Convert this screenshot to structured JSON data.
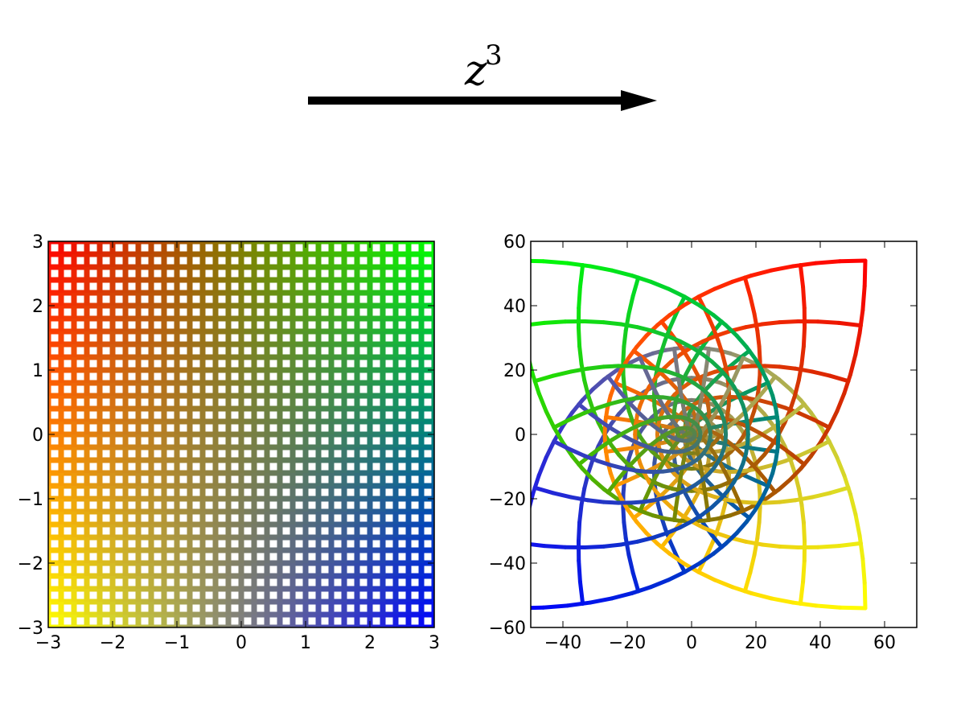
{
  "annotation": {
    "text": "z",
    "superscript": "3"
  },
  "chart_data": [
    {
      "type": "grid",
      "xlim": [
        -3,
        3
      ],
      "ylim": [
        -3,
        3
      ],
      "xticks": [
        {
          "value": -3,
          "label": "−3"
        },
        {
          "value": -2,
          "label": "−2"
        },
        {
          "value": -1,
          "label": "−1"
        },
        0,
        1,
        2,
        3
      ],
      "yticks": [
        {
          "value": -3,
          "label": "−3"
        },
        {
          "value": -2,
          "label": "−2"
        },
        {
          "value": -1,
          "label": "−1"
        },
        0,
        1,
        2,
        3
      ],
      "grid_re": [
        -3,
        -2.8,
        -2.6,
        -2.4,
        -2.2,
        -2,
        -1.8,
        -1.6,
        -1.4,
        -1.2,
        -1,
        -0.8,
        -0.6,
        -0.4,
        -0.2,
        0,
        0.2,
        0.4,
        0.6,
        0.8,
        1,
        1.2,
        1.4,
        1.6,
        1.8,
        2,
        2.2,
        2.4,
        2.6,
        2.8,
        3
      ],
      "grid_im": [
        -3,
        -2.8,
        -2.6,
        -2.4,
        -2.2,
        -2,
        -1.8,
        -1.6,
        -1.4,
        -1.2,
        -1,
        -0.8,
        -0.6,
        -0.4,
        -0.2,
        0,
        0.2,
        0.4,
        0.6,
        0.8,
        1,
        1.2,
        1.4,
        1.6,
        1.8,
        2,
        2.2,
        2.4,
        2.6,
        2.8,
        3
      ],
      "corner_colors": {
        "top_left": "#ff0000",
        "top_right": "#00ff00",
        "bottom_left": "#ffff00",
        "bottom_right": "#0000ff"
      }
    },
    {
      "type": "mapped_grid",
      "function": "cube",
      "xlim": [
        -50,
        70
      ],
      "ylim": [
        -60,
        60
      ],
      "xticks": [
        {
          "value": -40,
          "label": "−40"
        },
        {
          "value": -20,
          "label": "−20"
        },
        0,
        20,
        40,
        60
      ],
      "yticks": [
        {
          "value": -60,
          "label": "−60"
        },
        {
          "value": -40,
          "label": "−40"
        },
        {
          "value": -20,
          "label": "−20"
        },
        0,
        20,
        40,
        60
      ],
      "grid_re": [
        -3,
        -2.6,
        -2.2,
        -1.8,
        -1.4,
        -1,
        -0.6,
        -0.2,
        0.2,
        0.6,
        1,
        1.4,
        1.8,
        2.2,
        2.6,
        3
      ],
      "grid_im": [
        -3,
        -2.6,
        -2.2,
        -1.8,
        -1.4,
        -1,
        -0.6,
        -0.2,
        0.2,
        0.6,
        1,
        1.4,
        1.8,
        2.2,
        2.6,
        3
      ],
      "corner_colors": {
        "top_left": "#ff0000",
        "top_right": "#00ff00",
        "bottom_left": "#ffff00",
        "bottom_right": "#0000ff"
      }
    }
  ]
}
